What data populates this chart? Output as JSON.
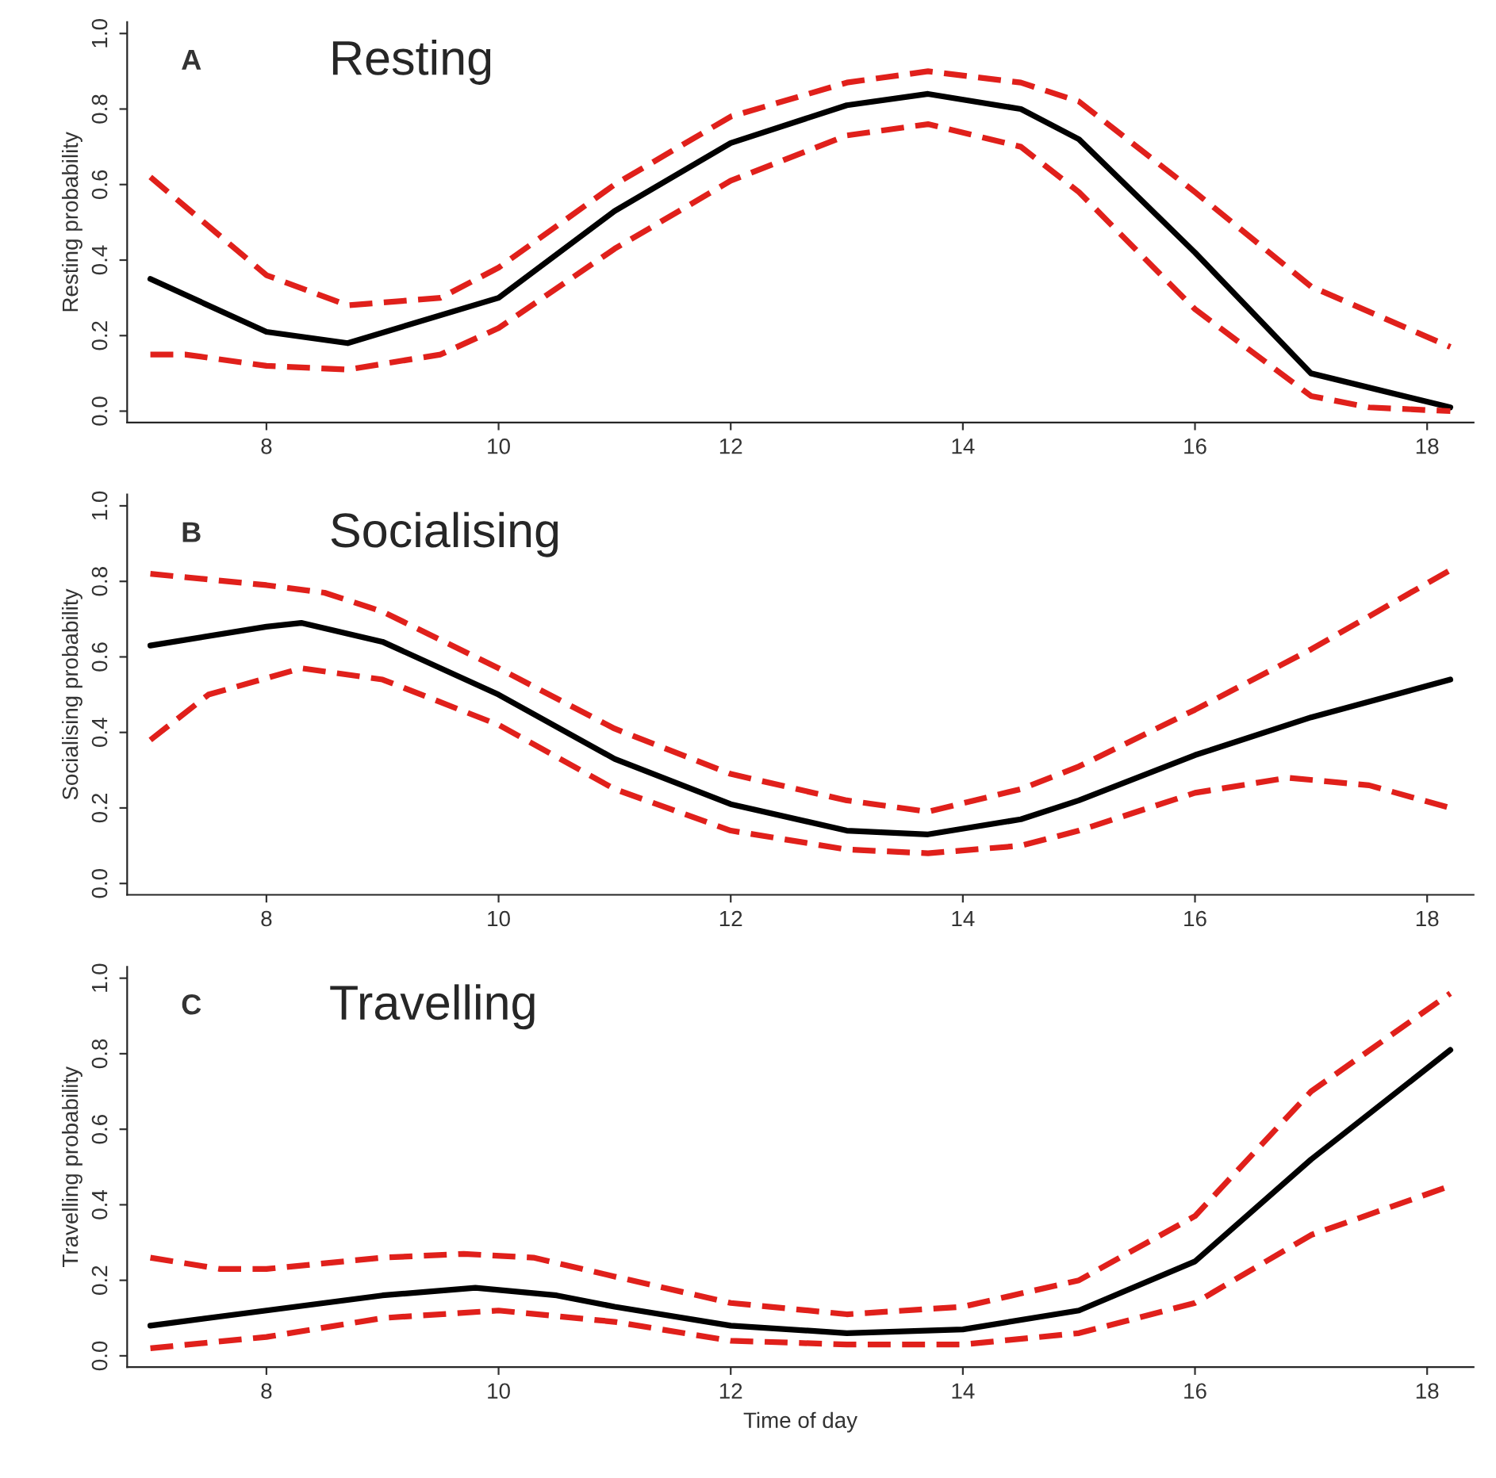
{
  "chart_data": [
    {
      "type": "line",
      "title": "Resting",
      "annotations": [
        "A"
      ],
      "ylabel": "Resting probability",
      "xlim": [
        6.8,
        18.4
      ],
      "xticks": [
        8,
        10,
        12,
        14,
        16,
        18
      ],
      "ylim": [
        -0.03,
        1.03
      ],
      "yticks": [
        {
          "value": 0,
          "label": "0.0"
        },
        {
          "value": 0.2,
          "label": "0.2"
        },
        {
          "value": 0.4,
          "label": "0.4"
        },
        {
          "value": 0.6,
          "label": "0.6"
        },
        {
          "value": 0.8,
          "label": "0.8"
        },
        {
          "value": 1,
          "label": "1.0"
        }
      ],
      "grid": false,
      "series": [
        {
          "color": "#000000",
          "line_style": "solid",
          "x": [
            7,
            8,
            8.7,
            10,
            11,
            12,
            13,
            13.7,
            14.5,
            15,
            16,
            17,
            18.2
          ],
          "values": [
            0.35,
            0.21,
            0.18,
            0.3,
            0.53,
            0.71,
            0.81,
            0.84,
            0.8,
            0.72,
            0.42,
            0.1,
            0.01
          ]
        },
        {
          "color": "#e0201b",
          "line_style": "dashed",
          "x": [
            7,
            8,
            8.7,
            9.5,
            10,
            11,
            12,
            13,
            13.7,
            14.5,
            15,
            16,
            17,
            18.2
          ],
          "values": [
            0.62,
            0.36,
            0.28,
            0.3,
            0.38,
            0.6,
            0.78,
            0.87,
            0.9,
            0.87,
            0.82,
            0.58,
            0.33,
            0.17
          ]
        },
        {
          "color": "#e0201b",
          "line_style": "dashed",
          "x": [
            7,
            7.3,
            8,
            8.7,
            9.5,
            10,
            11,
            12,
            13,
            13.7,
            14.5,
            15,
            16,
            17,
            17.5,
            18.2
          ],
          "values": [
            0.15,
            0.15,
            0.12,
            0.11,
            0.15,
            0.22,
            0.43,
            0.61,
            0.73,
            0.76,
            0.7,
            0.58,
            0.27,
            0.04,
            0.01,
            0.0
          ]
        }
      ]
    },
    {
      "type": "line",
      "title": "Socialising",
      "annotations": [
        "B"
      ],
      "ylabel": "Socialising probability",
      "xlim": [
        6.8,
        18.4
      ],
      "xticks": [
        8,
        10,
        12,
        14,
        16,
        18
      ],
      "ylim": [
        -0.03,
        1.03
      ],
      "yticks": [
        {
          "value": 0,
          "label": "0.0"
        },
        {
          "value": 0.2,
          "label": "0.2"
        },
        {
          "value": 0.4,
          "label": "0.4"
        },
        {
          "value": 0.6,
          "label": "0.6"
        },
        {
          "value": 0.8,
          "label": "0.8"
        },
        {
          "value": 1,
          "label": "1.0"
        }
      ],
      "grid": false,
      "series": [
        {
          "color": "#000000",
          "line_style": "solid",
          "x": [
            7,
            8,
            8.3,
            9,
            10,
            11,
            12,
            13,
            13.7,
            14.5,
            15,
            16,
            17,
            18.2
          ],
          "values": [
            0.63,
            0.68,
            0.69,
            0.64,
            0.5,
            0.33,
            0.21,
            0.14,
            0.13,
            0.17,
            0.22,
            0.34,
            0.44,
            0.54
          ]
        },
        {
          "color": "#e0201b",
          "line_style": "dashed",
          "x": [
            7,
            8,
            8.5,
            9,
            10,
            11,
            12,
            13,
            13.7,
            14.5,
            15,
            16,
            17,
            18.2
          ],
          "values": [
            0.82,
            0.79,
            0.77,
            0.72,
            0.57,
            0.41,
            0.29,
            0.22,
            0.19,
            0.25,
            0.31,
            0.46,
            0.62,
            0.83
          ]
        },
        {
          "color": "#e0201b",
          "line_style": "dashed",
          "x": [
            7,
            7.5,
            8.3,
            9,
            10,
            11,
            12,
            13,
            13.7,
            14.5,
            15,
            16,
            16.8,
            17.5,
            18.2
          ],
          "values": [
            0.38,
            0.5,
            0.57,
            0.54,
            0.42,
            0.25,
            0.14,
            0.09,
            0.08,
            0.1,
            0.14,
            0.24,
            0.28,
            0.26,
            0.2
          ]
        }
      ]
    },
    {
      "type": "line",
      "title": "Travelling",
      "annotations": [
        "C"
      ],
      "xlabel": "Time of day",
      "ylabel": "Travelling probability",
      "xlim": [
        6.8,
        18.4
      ],
      "xticks": [
        8,
        10,
        12,
        14,
        16,
        18
      ],
      "ylim": [
        -0.03,
        1.03
      ],
      "yticks": [
        {
          "value": 0,
          "label": "0.0"
        },
        {
          "value": 0.2,
          "label": "0.2"
        },
        {
          "value": 0.4,
          "label": "0.4"
        },
        {
          "value": 0.6,
          "label": "0.6"
        },
        {
          "value": 0.8,
          "label": "0.8"
        },
        {
          "value": 1,
          "label": "1.0"
        }
      ],
      "grid": false,
      "series": [
        {
          "color": "#000000",
          "line_style": "solid",
          "x": [
            7,
            8,
            9,
            9.8,
            10.5,
            11,
            12,
            13,
            14,
            15,
            16,
            17,
            18.2
          ],
          "values": [
            0.08,
            0.12,
            0.16,
            0.18,
            0.16,
            0.13,
            0.08,
            0.06,
            0.07,
            0.12,
            0.25,
            0.52,
            0.81
          ]
        },
        {
          "color": "#e0201b",
          "line_style": "dashed",
          "x": [
            7,
            7.6,
            8,
            9,
            9.7,
            10.3,
            11,
            12,
            13,
            14,
            15,
            16,
            17,
            18.2
          ],
          "values": [
            0.26,
            0.23,
            0.23,
            0.26,
            0.27,
            0.26,
            0.21,
            0.14,
            0.11,
            0.13,
            0.2,
            0.37,
            0.7,
            0.96
          ]
        },
        {
          "color": "#e0201b",
          "line_style": "dashed",
          "x": [
            7,
            8,
            9,
            10,
            11,
            12,
            13,
            14,
            15,
            16,
            17,
            18.2
          ],
          "values": [
            0.02,
            0.05,
            0.1,
            0.12,
            0.09,
            0.04,
            0.03,
            0.03,
            0.06,
            0.14,
            0.32,
            0.45
          ]
        }
      ]
    }
  ]
}
